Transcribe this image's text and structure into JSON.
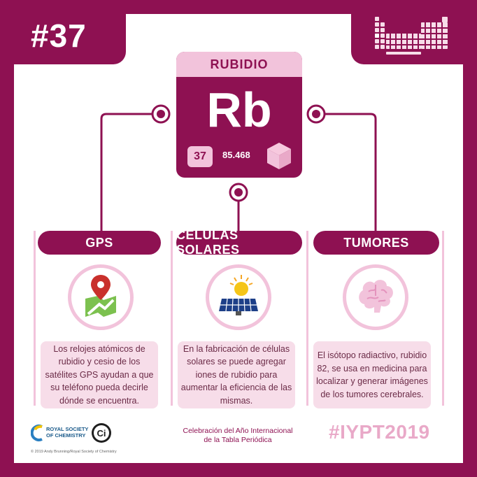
{
  "issue_number": "#37",
  "element": {
    "name": "RUBIDIO",
    "symbol": "Rb",
    "atomic_number": "37",
    "atomic_mass": "85.468"
  },
  "columns": [
    {
      "title": "GPS",
      "icon": "map-pin-icon",
      "text": "Los relojes atómicos de rubidio y cesio de los satélites GPS ayudan a que su teléfono pueda decirle dónde se encuentra."
    },
    {
      "title": "CÉLULAS SOLARES",
      "icon": "solar-panel-icon",
      "text": "En la fabricación de células solares se puede agregar iones de rubidio para aumentar la eficiencia de las mismas."
    },
    {
      "title": "TUMORES",
      "icon": "brain-icon",
      "text": "El isótopo radiactivo, rubidio 82, se usa en medicina para localizar y generar imágenes de los tumores cerebrales."
    }
  ],
  "footer": {
    "rsc_line1": "ROYAL SOCIETY",
    "rsc_line2": "OF CHEMISTRY",
    "ci_logo": "Ci",
    "copyright": "© 2019 Andy Brunning/Royal Society of Chemistry",
    "celebration_line1": "Celebración del Año Internacional",
    "celebration_line2": "de la Tabla Periódica",
    "hashtag": "#IYPT2019"
  },
  "colors": {
    "primary": "#8e1152",
    "light_pink": "#f2c3db",
    "pale_pink": "#f7dde9",
    "hashtag_pink": "#e9a9c8"
  }
}
